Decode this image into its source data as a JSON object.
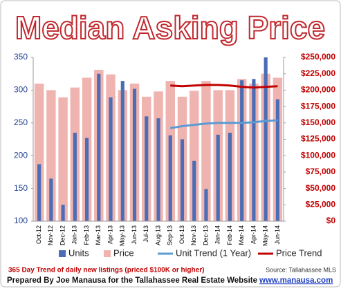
{
  "chart_data": {
    "type": "bar",
    "title": "Median Asking Price",
    "categories": [
      "Oct-12",
      "Nov-12",
      "Dec-12",
      "Jan-13",
      "Feb-13",
      "Mar-13",
      "Apr-13",
      "May-13",
      "Jun-13",
      "Jul-13",
      "Aug-13",
      "Sep-13",
      "Oct-13",
      "Nov-13",
      "Dec-13",
      "Jan-14",
      "Feb-14",
      "Mar-14",
      "Apr-14",
      "May-14",
      "Jun-14"
    ],
    "series": [
      {
        "name": "Units",
        "type": "bar",
        "axis": "y",
        "color": "#4a6db5",
        "values": [
          187,
          165,
          125,
          235,
          227,
          325,
          289,
          314,
          302,
          260,
          257,
          231,
          225,
          192,
          149,
          232,
          235,
          315,
          317,
          350,
          286
        ]
      },
      {
        "name": "Price",
        "type": "bar",
        "axis": "y2",
        "color": "#f0b4b0",
        "values": [
          210000,
          200000,
          189000,
          204000,
          219000,
          231000,
          224000,
          200000,
          210000,
          190000,
          198000,
          214000,
          190000,
          199000,
          214000,
          200000,
          200000,
          217000,
          210000,
          225000,
          219000
        ]
      },
      {
        "name": "Unit Trend (1 Year)",
        "type": "line",
        "axis": "y",
        "color": "#5b9bd5",
        "values": [
          null,
          null,
          null,
          null,
          null,
          null,
          null,
          null,
          null,
          null,
          null,
          242,
          245,
          247,
          249,
          250,
          250,
          250,
          251,
          253,
          254
        ]
      },
      {
        "name": "Price Trend",
        "type": "line",
        "axis": "y2",
        "color": "#c00000",
        "values": [
          null,
          null,
          null,
          null,
          null,
          null,
          null,
          null,
          null,
          null,
          null,
          207000,
          206000,
          207000,
          208000,
          208000,
          207000,
          205000,
          204000,
          205000,
          206000
        ]
      }
    ],
    "ylim": [
      100,
      350
    ],
    "yticks": [
      100,
      150,
      200,
      250,
      300,
      350
    ],
    "y2lim": [
      0,
      250000
    ],
    "y2ticks": [
      {
        "value": 0,
        "label": "$0"
      },
      {
        "value": 25000,
        "label": "$25,000"
      },
      {
        "value": 50000,
        "label": "$50,000"
      },
      {
        "value": 75000,
        "label": "$75,000"
      },
      {
        "value": 100000,
        "label": "$100,000"
      },
      {
        "value": 125000,
        "label": "$125,000"
      },
      {
        "value": 150000,
        "label": "$150,000"
      },
      {
        "value": 175000,
        "label": "$175,000"
      },
      {
        "value": 200000,
        "label": "$200,000"
      },
      {
        "value": 225000,
        "label": "$225,000"
      },
      {
        "value": 250000,
        "label": "$250,000"
      }
    ],
    "grid": false,
    "annotations": {
      "note": "365 Day Trend of daily new listings  (priced $100K or higher)",
      "source": "Source: Tallahassee MLS",
      "credit": "Prepared By Joe Manausa for the Tallahassee Real Estate Website",
      "website": "www.manausa.com"
    }
  }
}
